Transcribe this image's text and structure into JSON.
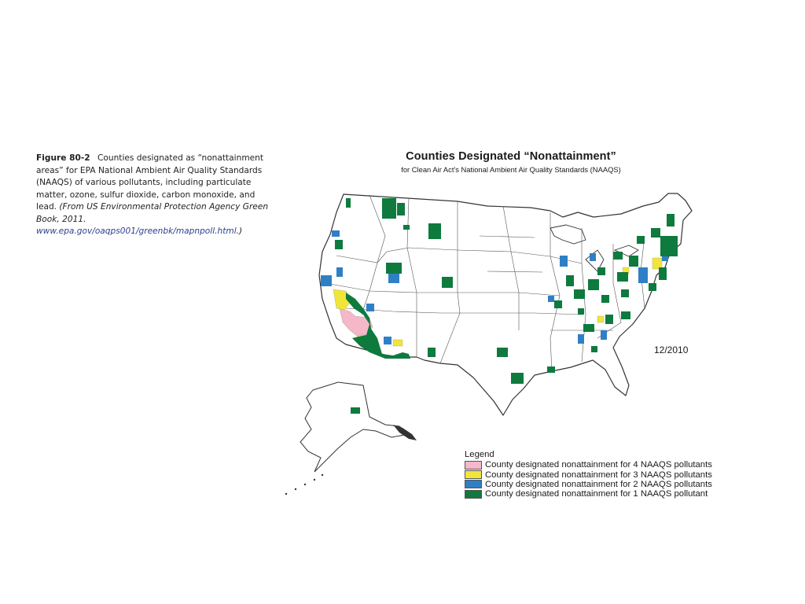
{
  "caption": {
    "figure_label": "Figure 80-2",
    "text": "Counties designated as “nonattainment areas” for EPA National Ambient Air Quality Standards (NAAQS) of various pollutants, including particulate matter, ozone, sulfur dioxide, carbon monoxide, and lead.",
    "source": "(From US Environmental Protection Agency Green Book, 2011.",
    "url": "www.epa.gov/oaqps001/greenbk/mapnpoll.html",
    "url_tail": ".)"
  },
  "map": {
    "title": "Counties Designated “Nonattainment”",
    "subtitle": "for Clean Air Act's National Ambient Air Quality Standards (NAAQS)",
    "date": "12/2010",
    "region": "United States (contiguous states and Alaska)"
  },
  "legend": {
    "title": "Legend",
    "items": [
      {
        "label": "County designated nonattainment for 4 NAAQS pollutants",
        "color": "#f4b8c8"
      },
      {
        "label": "County designated nonattainment for 3 NAAQS pollutants",
        "color": "#f2e53a"
      },
      {
        "label": "County designated nonattainment for 2 NAAQS pollutants",
        "color": "#2f7fc6"
      },
      {
        "label": "County designated nonattainment for 1 NAAQS pollutant",
        "color": "#0e7a3e"
      }
    ]
  }
}
